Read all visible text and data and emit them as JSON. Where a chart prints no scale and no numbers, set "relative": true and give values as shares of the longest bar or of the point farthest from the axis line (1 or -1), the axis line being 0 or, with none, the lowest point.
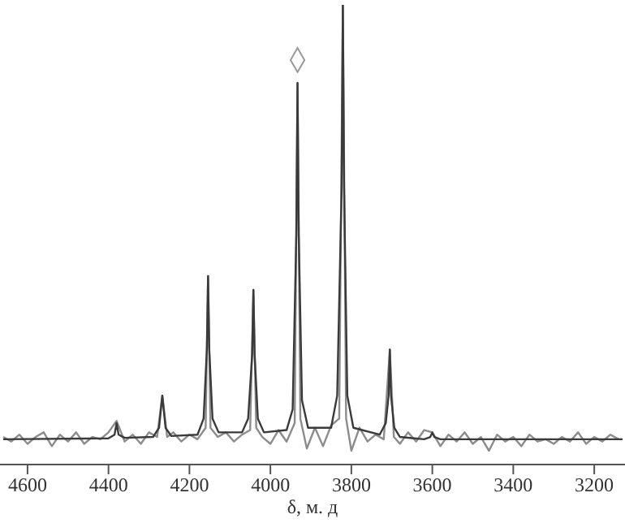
{
  "chart_data": {
    "type": "line",
    "relative": true,
    "xlabel": "δ, м. д",
    "xlim": [
      4668,
      3124
    ],
    "xticks": [
      4600,
      4400,
      4200,
      4000,
      3800,
      3600,
      3400,
      3200
    ],
    "grid": false,
    "marker": "none",
    "series": [
      {
        "color": "#8c8c8c",
        "x": [
          4660,
          4640,
          4620,
          4600,
          4580,
          4560,
          4540,
          4520,
          4500,
          4480,
          4460,
          4440,
          4420,
          4400,
          4380,
          4360,
          4340,
          4320,
          4300,
          4280,
          4267,
          4255,
          4240,
          4220,
          4200,
          4180,
          4160,
          4154,
          4148,
          4130,
          4110,
          4090,
          4070,
          4050,
          4042,
          4035,
          4020,
          4000,
          3980,
          3960,
          3940,
          3933,
          3926,
          3910,
          3890,
          3870,
          3850,
          3830,
          3821,
          3813,
          3800,
          3780,
          3760,
          3740,
          3720,
          3705,
          3695,
          3680,
          3660,
          3640,
          3620,
          3600,
          3580,
          3560,
          3540,
          3520,
          3500,
          3480,
          3460,
          3440,
          3420,
          3400,
          3380,
          3360,
          3340,
          3320,
          3300,
          3280,
          3260,
          3240,
          3220,
          3200,
          3180,
          3160,
          3140
        ],
        "values": [
          0.06,
          0.05,
          0.065,
          0.045,
          0.06,
          0.07,
          0.04,
          0.065,
          0.05,
          0.07,
          0.045,
          0.06,
          0.055,
          0.07,
          0.095,
          0.05,
          0.065,
          0.045,
          0.07,
          0.06,
          0.15,
          0.06,
          0.07,
          0.05,
          0.065,
          0.055,
          0.08,
          0.41,
          0.08,
          0.06,
          0.07,
          0.05,
          0.065,
          0.075,
          0.38,
          0.08,
          0.06,
          0.045,
          0.075,
          0.05,
          0.09,
          0.83,
          0.1,
          0.035,
          0.08,
          0.04,
          0.085,
          0.1,
          1.0,
          0.1,
          0.03,
          0.08,
          0.05,
          0.065,
          0.055,
          0.25,
          0.06,
          0.045,
          0.07,
          0.05,
          0.075,
          0.07,
          0.04,
          0.065,
          0.05,
          0.07,
          0.045,
          0.06,
          0.03,
          0.065,
          0.05,
          0.06,
          0.04,
          0.065,
          0.05,
          0.055,
          0.045,
          0.06,
          0.05,
          0.07,
          0.045,
          0.06,
          0.05,
          0.065,
          0.055
        ]
      },
      {
        "type": "scatter",
        "marker": "diamond",
        "color": "#999999",
        "x": [
          3933
        ],
        "values": [
          0.88
        ]
      },
      {
        "color": "#3a3a3a",
        "x": [
          4660,
          4400,
          4385,
          4380,
          4375,
          4360,
          4290,
          4275,
          4267,
          4259,
          4245,
          4180,
          4165,
          4157,
          4154,
          4151,
          4143,
          4128,
          4070,
          4055,
          4045,
          4042,
          4039,
          4031,
          4016,
          3960,
          3945,
          3936,
          3933,
          3930,
          3922,
          3907,
          3850,
          3835,
          3824,
          3821,
          3818,
          3810,
          3795,
          3730,
          3715,
          3708,
          3705,
          3702,
          3694,
          3680,
          3620,
          3605,
          3600,
          3595,
          3580,
          3130
        ],
        "values": [
          0.055,
          0.057,
          0.065,
          0.09,
          0.065,
          0.058,
          0.06,
          0.08,
          0.15,
          0.08,
          0.062,
          0.065,
          0.1,
          0.25,
          0.41,
          0.25,
          0.1,
          0.07,
          0.07,
          0.1,
          0.24,
          0.38,
          0.24,
          0.1,
          0.07,
          0.075,
          0.12,
          0.5,
          0.83,
          0.5,
          0.14,
          0.08,
          0.08,
          0.15,
          0.6,
          1.0,
          0.6,
          0.15,
          0.08,
          0.065,
          0.09,
          0.15,
          0.25,
          0.15,
          0.08,
          0.06,
          0.055,
          0.06,
          0.07,
          0.06,
          0.055,
          0.055
        ]
      }
    ]
  }
}
